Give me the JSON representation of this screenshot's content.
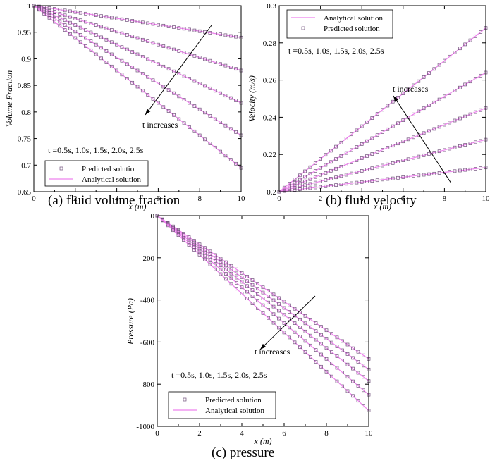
{
  "captions": {
    "a": "(a) fluid volume fraction",
    "b": "(b) fluid velocity",
    "c": "(c) pressure"
  },
  "colors": {
    "analytical_line": "#ee82ee",
    "marker_edge": "#6f4f7a",
    "axis": "#000000"
  },
  "chart_data": [
    {
      "id": "a",
      "type": "line",
      "xlabel": "x (m)",
      "ylabel": "Volume Fraction",
      "xlim": [
        0,
        10
      ],
      "ylim": [
        0.65,
        1.0
      ],
      "xticks": [
        "0",
        "2",
        "4",
        "6",
        "8",
        "10"
      ],
      "yticks": [
        "0.65",
        "0.7",
        "0.75",
        "0.8",
        "0.85",
        "0.9",
        "0.95",
        "1"
      ],
      "x": [
        0,
        0.25,
        0.5,
        0.75,
        1,
        1.25,
        1.5,
        1.75,
        2,
        2.25,
        2.5,
        2.75,
        3,
        3.25,
        3.5,
        3.75,
        4,
        4.25,
        4.5,
        4.75,
        5,
        5.25,
        5.5,
        5.75,
        6,
        6.25,
        6.5,
        6.75,
        7,
        7.25,
        7.5,
        7.75,
        8,
        8.25,
        8.5,
        8.75,
        9,
        9.25,
        9.5,
        9.75,
        10
      ],
      "series": [
        {
          "t": "0.5s",
          "y0": 1.0,
          "y10": 0.94
        },
        {
          "t": "1.0s",
          "y0": 1.0,
          "y10": 0.878
        },
        {
          "t": "1.5s",
          "y0": 1.0,
          "y10": 0.817
        },
        {
          "t": "2.0s",
          "y0": 1.0,
          "y10": 0.756
        },
        {
          "t": "2.5s",
          "y0": 1.0,
          "y10": 0.695
        }
      ],
      "legend": [
        "Predicted solution",
        "Analytical solution"
      ],
      "times_label": "t =0.5s, 1.0s, 1.5s, 2.0s, 2.5s",
      "annotation": "t increases"
    },
    {
      "id": "b",
      "type": "line",
      "xlabel": "x (m)",
      "ylabel": "Velocity (m/s)",
      "xlim": [
        0,
        10
      ],
      "ylim": [
        0.2,
        0.3
      ],
      "xticks": [
        "0",
        "2",
        "4",
        "6",
        "8",
        "10"
      ],
      "yticks": [
        "0.2",
        "0.22",
        "0.24",
        "0.26",
        "0.28",
        "0.3"
      ],
      "x": [
        0,
        0.25,
        0.5,
        0.75,
        1,
        1.25,
        1.5,
        1.75,
        2,
        2.25,
        2.5,
        2.75,
        3,
        3.25,
        3.5,
        3.75,
        4,
        4.25,
        4.5,
        4.75,
        5,
        5.25,
        5.5,
        5.75,
        6,
        6.25,
        6.5,
        6.75,
        7,
        7.25,
        7.5,
        7.75,
        8,
        8.25,
        8.5,
        8.75,
        9,
        9.25,
        9.5,
        9.75,
        10
      ],
      "series": [
        {
          "t": "0.5s",
          "y0": 0.2,
          "y10": 0.213
        },
        {
          "t": "1.0s",
          "y0": 0.2,
          "y10": 0.228
        },
        {
          "t": "1.5s",
          "y0": 0.2,
          "y10": 0.245
        },
        {
          "t": "2.0s",
          "y0": 0.2,
          "y10": 0.264
        },
        {
          "t": "2.5s",
          "y0": 0.2,
          "y10": 0.288
        }
      ],
      "legend": [
        "Analytical solution",
        "Predicted solution"
      ],
      "times_label": "t =0.5s, 1.0s, 1.5s, 2.0s, 2.5s",
      "annotation": "t increases"
    },
    {
      "id": "c",
      "type": "line",
      "xlabel": "x (m)",
      "ylabel": "Pressure (Pa)",
      "xlim": [
        0,
        10
      ],
      "ylim": [
        -1000,
        0
      ],
      "xticks": [
        "0",
        "2",
        "4",
        "6",
        "8",
        "10"
      ],
      "yticks": [
        "-1000",
        "-800",
        "-600",
        "-400",
        "-200",
        "0"
      ],
      "x": [
        0,
        0.25,
        0.5,
        0.75,
        1,
        1.25,
        1.5,
        1.75,
        2,
        2.25,
        2.5,
        2.75,
        3,
        3.25,
        3.5,
        3.75,
        4,
        4.25,
        4.5,
        4.75,
        5,
        5.25,
        5.5,
        5.75,
        6,
        6.25,
        6.5,
        6.75,
        7,
        7.25,
        7.5,
        7.75,
        8,
        8.25,
        8.5,
        8.75,
        9,
        9.25,
        9.5,
        9.75,
        10
      ],
      "series": [
        {
          "t": "0.5s",
          "y0": 0,
          "y10": -680
        },
        {
          "t": "1.0s",
          "y0": 0,
          "y10": -730
        },
        {
          "t": "1.5s",
          "y0": 0,
          "y10": -785
        },
        {
          "t": "2.0s",
          "y0": 0,
          "y10": -850
        },
        {
          "t": "2.5s",
          "y0": 0,
          "y10": -925
        }
      ],
      "legend": [
        "Predicted solution",
        "Analytical solution"
      ],
      "times_label": "t =0.5s, 1.0s, 1.5s, 2.0s, 2.5s",
      "annotation": "t increases"
    }
  ]
}
